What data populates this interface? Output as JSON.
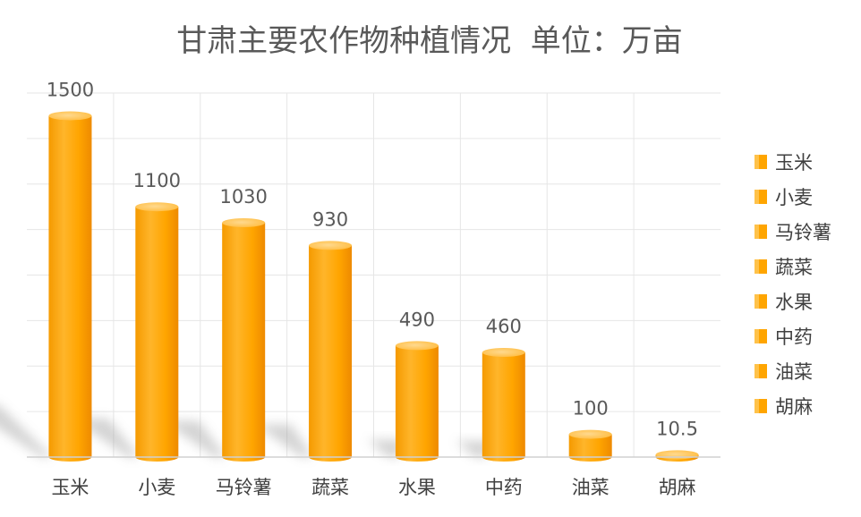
{
  "chart_data": {
    "type": "bar",
    "title": "甘肃主要农作物种植情况  单位：万亩",
    "categories": [
      "玉米",
      "小麦",
      "马铃薯",
      "蔬菜",
      "水果",
      "中药",
      "油菜",
      "胡麻"
    ],
    "series": [
      {
        "values": [
          1500,
          1100,
          1030,
          930,
          490,
          460,
          100,
          10.5
        ]
      }
    ],
    "data_labels": [
      "1500",
      "1100",
      "1030",
      "930",
      "490",
      "460",
      "100",
      "10.5"
    ],
    "ylim": [
      0,
      1600
    ],
    "grid": true,
    "legend": "right",
    "colors": {
      "bar": "#FFA500",
      "bar_light": "#FFD27A",
      "bar_dark": "#F08C00",
      "bar_top": "#FFC24A"
    }
  }
}
